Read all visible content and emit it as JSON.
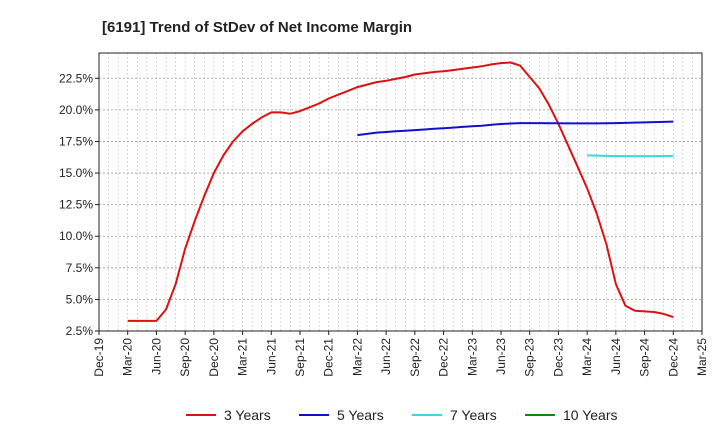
{
  "chart_data": {
    "type": "line",
    "title": "[6191]  Trend of StDev of Net Income Margin",
    "xlabel": "",
    "ylabel": "",
    "x_tick_labels": [
      "Dec-19",
      "Mar-20",
      "Jun-20",
      "Sep-20",
      "Dec-20",
      "Mar-21",
      "Jun-21",
      "Sep-21",
      "Dec-21",
      "Mar-22",
      "Jun-22",
      "Sep-22",
      "Dec-22",
      "Mar-23",
      "Jun-23",
      "Sep-23",
      "Dec-23",
      "Mar-24",
      "Jun-24",
      "Sep-24",
      "Dec-24",
      "Mar-25"
    ],
    "y_tick_labels": [
      "2.5%",
      "5.0%",
      "7.5%",
      "10.0%",
      "12.5%",
      "15.0%",
      "17.5%",
      "20.0%",
      "22.5%"
    ],
    "y_ticks": [
      2.5,
      5.0,
      7.5,
      10.0,
      12.5,
      15.0,
      17.5,
      20.0,
      22.5
    ],
    "ylim": [
      2.5,
      24.5
    ],
    "xlim": [
      "Dec-19",
      "Mar-25"
    ],
    "grid": true,
    "legend_position": "bottom",
    "series": [
      {
        "name": "3 Years",
        "color": "#dd1111",
        "points": [
          [
            "2020-03",
            3.3
          ],
          [
            "2020-04",
            3.3
          ],
          [
            "2020-05",
            3.3
          ],
          [
            "2020-06",
            3.3
          ],
          [
            "2020-07",
            4.2
          ],
          [
            "2020-08",
            6.2
          ],
          [
            "2020-09",
            9.0
          ],
          [
            "2020-10",
            11.2
          ],
          [
            "2020-11",
            13.2
          ],
          [
            "2020-12",
            15.0
          ],
          [
            "2021-01",
            16.4
          ],
          [
            "2021-02",
            17.5
          ],
          [
            "2021-03",
            18.3
          ],
          [
            "2021-04",
            18.9
          ],
          [
            "2021-05",
            19.4
          ],
          [
            "2021-06",
            19.8
          ],
          [
            "2021-07",
            19.8
          ],
          [
            "2021-08",
            19.7
          ],
          [
            "2021-09",
            19.9
          ],
          [
            "2021-10",
            20.2
          ],
          [
            "2021-11",
            20.5
          ],
          [
            "2021-12",
            20.9
          ],
          [
            "2022-01",
            21.2
          ],
          [
            "2022-02",
            21.5
          ],
          [
            "2022-03",
            21.8
          ],
          [
            "2022-04",
            22.0
          ],
          [
            "2022-05",
            22.2
          ],
          [
            "2022-06",
            22.3
          ],
          [
            "2022-07",
            22.45
          ],
          [
            "2022-08",
            22.6
          ],
          [
            "2022-09",
            22.8
          ],
          [
            "2022-10",
            22.9
          ],
          [
            "2022-11",
            23.0
          ],
          [
            "2022-12",
            23.05
          ],
          [
            "2023-01",
            23.15
          ],
          [
            "2023-02",
            23.25
          ],
          [
            "2023-03",
            23.35
          ],
          [
            "2023-04",
            23.45
          ],
          [
            "2023-05",
            23.6
          ],
          [
            "2023-06",
            23.7
          ],
          [
            "2023-07",
            23.75
          ],
          [
            "2023-08",
            23.5
          ],
          [
            "2023-09",
            22.6
          ],
          [
            "2023-10",
            21.7
          ],
          [
            "2023-11",
            20.4
          ],
          [
            "2023-12",
            18.9
          ],
          [
            "2024-01",
            17.2
          ],
          [
            "2024-02",
            15.5
          ],
          [
            "2024-03",
            13.8
          ],
          [
            "2024-04",
            11.8
          ],
          [
            "2024-05",
            9.4
          ],
          [
            "2024-06",
            6.2
          ],
          [
            "2024-07",
            4.5
          ],
          [
            "2024-08",
            4.1
          ],
          [
            "2024-09",
            4.05
          ],
          [
            "2024-10",
            4.0
          ],
          [
            "2024-11",
            3.85
          ],
          [
            "2024-12",
            3.6
          ]
        ]
      },
      {
        "name": "5 Years",
        "color": "#1111cc",
        "points": [
          [
            "2022-03",
            18.0
          ],
          [
            "2022-04",
            18.1
          ],
          [
            "2022-05",
            18.2
          ],
          [
            "2022-06",
            18.25
          ],
          [
            "2022-07",
            18.3
          ],
          [
            "2022-08",
            18.35
          ],
          [
            "2022-09",
            18.4
          ],
          [
            "2022-10",
            18.45
          ],
          [
            "2022-11",
            18.5
          ],
          [
            "2022-12",
            18.55
          ],
          [
            "2023-01",
            18.6
          ],
          [
            "2023-02",
            18.65
          ],
          [
            "2023-03",
            18.7
          ],
          [
            "2023-04",
            18.75
          ],
          [
            "2023-05",
            18.82
          ],
          [
            "2023-06",
            18.88
          ],
          [
            "2023-07",
            18.92
          ],
          [
            "2023-08",
            18.95
          ],
          [
            "2023-09",
            18.95
          ],
          [
            "2023-10",
            18.95
          ],
          [
            "2023-11",
            18.94
          ],
          [
            "2023-12",
            18.94
          ],
          [
            "2024-01",
            18.93
          ],
          [
            "2024-02",
            18.93
          ],
          [
            "2024-03",
            18.93
          ],
          [
            "2024-04",
            18.93
          ],
          [
            "2024-05",
            18.94
          ],
          [
            "2024-06",
            18.95
          ],
          [
            "2024-07",
            18.97
          ],
          [
            "2024-08",
            18.99
          ],
          [
            "2024-09",
            19.01
          ],
          [
            "2024-10",
            19.03
          ],
          [
            "2024-11",
            19.05
          ],
          [
            "2024-12",
            19.07
          ]
        ]
      },
      {
        "name": "7 Years",
        "color": "#33dddd",
        "points": [
          [
            "2024-03",
            16.4
          ],
          [
            "2024-04",
            16.38
          ],
          [
            "2024-05",
            16.36
          ],
          [
            "2024-06",
            16.35
          ],
          [
            "2024-07",
            16.34
          ],
          [
            "2024-08",
            16.34
          ],
          [
            "2024-09",
            16.34
          ],
          [
            "2024-10",
            16.34
          ],
          [
            "2024-11",
            16.35
          ],
          [
            "2024-12",
            16.36
          ]
        ]
      },
      {
        "name": "10 Years",
        "color": "#118811",
        "points": []
      }
    ]
  }
}
